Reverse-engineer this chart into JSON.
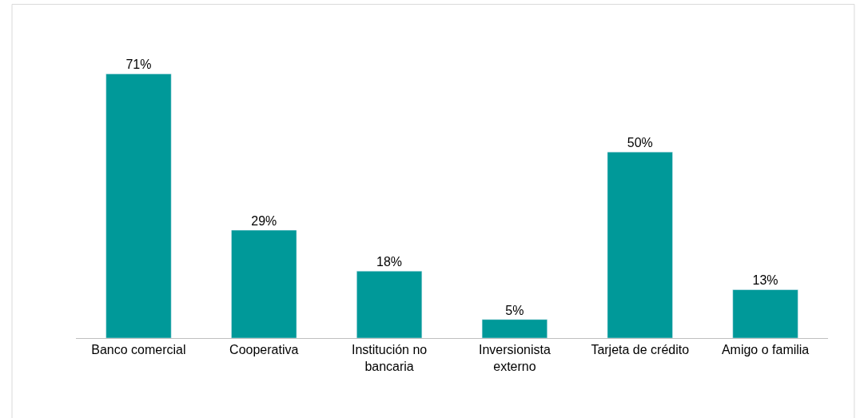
{
  "chart_data": {
    "type": "bar",
    "categories": [
      "Banco comercial",
      "Cooperativa",
      "Institución no bancaria",
      "Inversionista externo",
      "Tarjeta de crédito",
      "Amigo o familia"
    ],
    "values": [
      71,
      29,
      18,
      5,
      50,
      13
    ],
    "value_labels": [
      "71%",
      "29%",
      "18%",
      "5%",
      "50%",
      "13%"
    ],
    "color": "#009999"
  }
}
